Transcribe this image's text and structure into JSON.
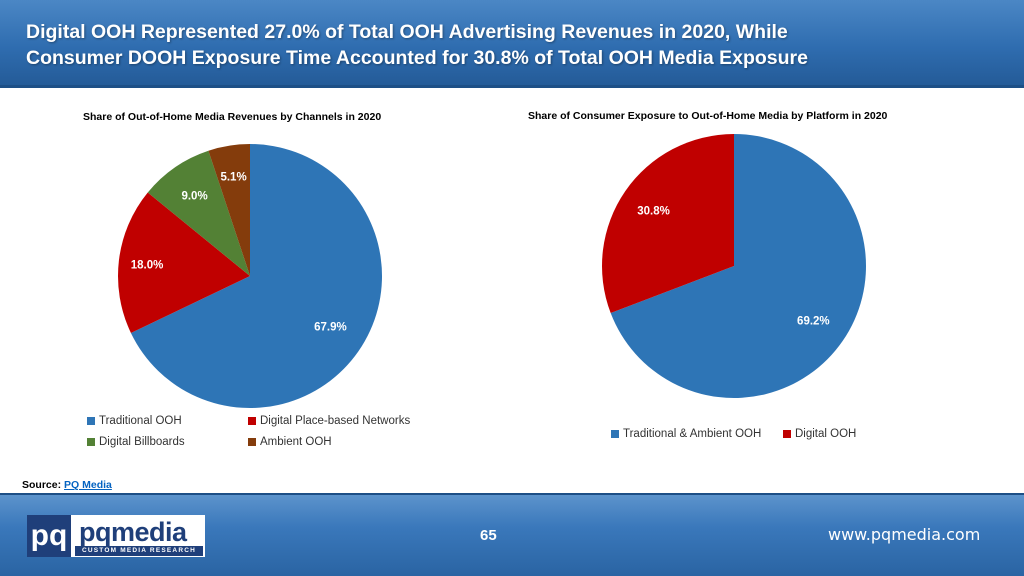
{
  "header": {
    "title_line1": "Digital OOH Represented 27.0% of Total OOH Advertising Revenues in 2020, While",
    "title_line2": "Consumer DOOH Exposure Time Accounted for 30.8% of Total OOH Media Exposure"
  },
  "chart_data": [
    {
      "type": "pie",
      "title": "Share of Out-of-Home Media Revenues by Channels in 2020",
      "categories": [
        "Traditional OOH",
        "Digital Place-based Networks",
        "Digital Billboards",
        "Ambient OOH"
      ],
      "values": [
        67.9,
        18.0,
        9.0,
        5.1
      ],
      "data_labels": [
        "67.9%",
        "18.0%",
        "9.0%",
        "5.1%"
      ],
      "colors": [
        "#2e75b6",
        "#c00000",
        "#538135",
        "#843c0c"
      ],
      "label_colors": [
        "#ffffff",
        "#ffffff",
        "#ffffff",
        "#ffffff"
      ],
      "legend_position": "bottom",
      "start": "top, clockwise"
    },
    {
      "type": "pie",
      "title": "Share of Consumer Exposure to Out-of-Home Media by Platform in 2020",
      "categories": [
        "Traditional & Ambient OOH",
        "Digital OOH"
      ],
      "values": [
        69.2,
        30.8
      ],
      "data_labels": [
        "69.2%",
        "30.8%"
      ],
      "colors": [
        "#2e75b6",
        "#c00000"
      ],
      "label_colors": [
        "#ffffff",
        "#ffffff"
      ],
      "legend_position": "bottom",
      "start": "top, clockwise"
    }
  ],
  "source": {
    "label": "Source:",
    "link_text": "PQ Media"
  },
  "footer": {
    "logo_mark": "pq",
    "logo_brand": "pqmedia",
    "logo_tagline": "CUSTOM MEDIA RESEARCH",
    "page_number": "65",
    "website": "www.pqmedia.com"
  }
}
